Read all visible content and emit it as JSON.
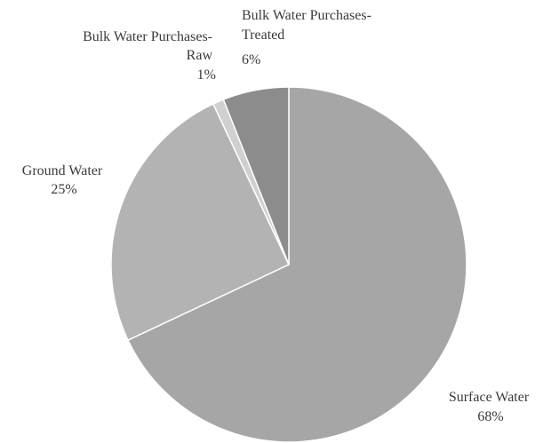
{
  "chart_data": {
    "type": "pie",
    "start_angle_deg": 0,
    "direction": "clockwise",
    "slices": [
      {
        "name": "Surface Water",
        "value": 68,
        "label_line1": "Surface Water",
        "label_line2": "68%",
        "color": "#a6a6a6"
      },
      {
        "name": "Ground Water",
        "value": 25,
        "label_line1": "Ground Water",
        "label_line2": "25%",
        "color": "#b3b3b3"
      },
      {
        "name": "Bulk Water Purchases-Raw",
        "value": 1,
        "label_line1": "Bulk Water Purchases-",
        "label_line2": "Raw",
        "label_line3": "1%",
        "color": "#d0d0d0"
      },
      {
        "name": "Bulk Water Purchases-Treated",
        "value": 6,
        "label_line1": "Bulk Water Purchases-",
        "label_line2": "Treated",
        "label_line3": "6%",
        "color": "#8c8c8c"
      }
    ],
    "edge_color": "#ffffff"
  }
}
